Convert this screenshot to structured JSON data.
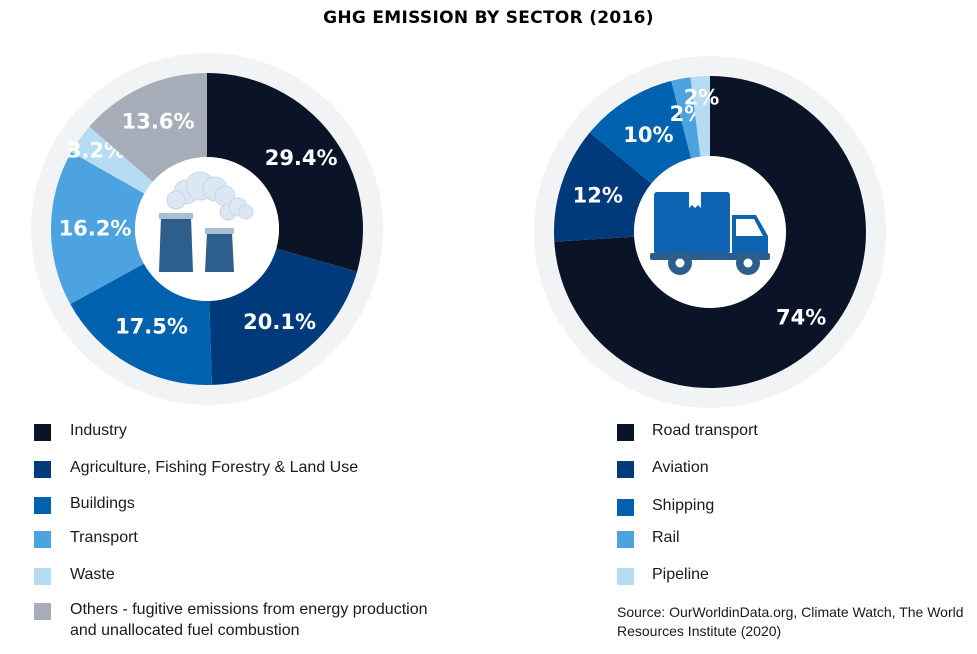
{
  "title": "GHG EMISSION BY SECTOR (2016)",
  "colors": {
    "navy_dark": "#0a1426",
    "navy": "#003a7a",
    "blue": "#0062ae",
    "light_blue": "#4da3e0",
    "pale_blue": "#b6dcf3",
    "grey": "#a6adb8",
    "halo": "#f1f3f5",
    "icon_blue": "#2e5e8c",
    "truck_blue": "#0e64b3"
  },
  "chart_data": [
    {
      "type": "pie",
      "categories": [
        "Industry",
        "Agriculture, Fishing Forestry & Land Use",
        "Buildings",
        "Transport",
        "Waste",
        "Others - fugitive emissions from energy production and unallocated fuel combustion"
      ],
      "values": [
        29.4,
        20.1,
        17.5,
        16.2,
        3.2,
        13.6
      ],
      "labels": [
        "29.4%",
        "20.1%",
        "17.5%",
        "16.2%",
        "3.2%",
        "13.6%"
      ],
      "colors": [
        "#0a1426",
        "#003a7a",
        "#0062ae",
        "#4da3e0",
        "#b6dcf3",
        "#a6adb8"
      ],
      "center_icon": "factory-icon"
    },
    {
      "type": "pie",
      "categories": [
        "Road transport",
        "Aviation",
        "Shipping",
        "Rail",
        "Pipeline"
      ],
      "values": [
        74,
        12,
        10,
        2,
        2
      ],
      "labels": [
        "74%",
        "12%",
        "10%",
        "2%",
        "2%"
      ],
      "colors": [
        "#0a1426",
        "#003a7a",
        "#0062ae",
        "#4da3e0",
        "#b6dcf3"
      ],
      "center_icon": "truck-icon"
    }
  ],
  "legend_left": [
    {
      "label": "Industry",
      "color": "#0a1426"
    },
    {
      "label": "Agriculture, Fishing Forestry & Land Use",
      "color": "#003a7a"
    },
    {
      "label": "Buildings",
      "color": "#0062ae"
    },
    {
      "label": "Transport",
      "color": "#4da3e0"
    },
    {
      "label": "Waste",
      "color": "#b6dcf3"
    },
    {
      "label": "Others - fugitive emissions from energy production",
      "label2": "and unallocated fuel combustion",
      "color": "#a6adb8"
    }
  ],
  "legend_right": [
    {
      "label": "Road transport",
      "color": "#0a1426"
    },
    {
      "label": "Aviation",
      "color": "#003a7a"
    },
    {
      "label": "Shipping",
      "color": "#0062ae"
    },
    {
      "label": "Rail",
      "color": "#4da3e0"
    },
    {
      "label": "Pipeline",
      "color": "#b6dcf3"
    }
  ],
  "source": {
    "line1": "Source: OurWorldinData.org, Climate Watch, The World",
    "line2": "Resources Institute (2020)"
  }
}
